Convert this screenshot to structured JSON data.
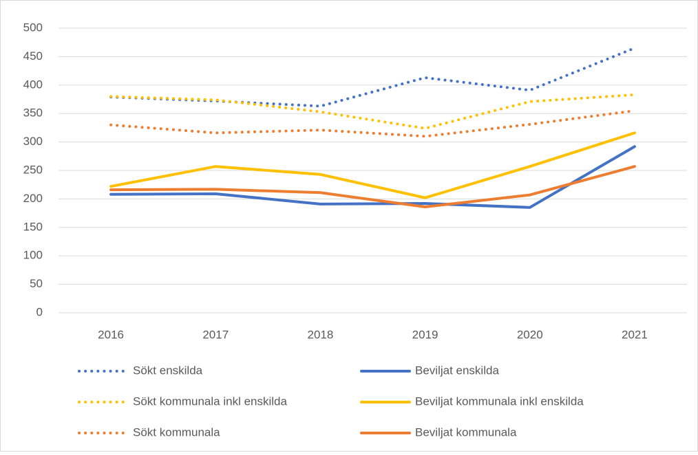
{
  "chart_data": {
    "type": "line",
    "categories": [
      "2016",
      "2017",
      "2018",
      "2019",
      "2020",
      "2021"
    ],
    "series": [
      {
        "name": "Sökt enskilda",
        "color": "#4472c4",
        "line_style": "dotted",
        "values": [
          379,
          372,
          363,
          413,
          391,
          465
        ]
      },
      {
        "name": "Beviljat enskilda",
        "color": "#4472c4",
        "line_style": "solid",
        "values": [
          208,
          209,
          191,
          192,
          185,
          292
        ]
      },
      {
        "name": "Sökt kommunala inkl enskilda",
        "color": "#ffc000",
        "line_style": "dotted",
        "values": [
          380,
          374,
          353,
          324,
          371,
          383
        ]
      },
      {
        "name": "Beviljat kommunala inkl enskilda",
        "color": "#ffc000",
        "line_style": "solid",
        "values": [
          222,
          257,
          243,
          202,
          257,
          316
        ]
      },
      {
        "name": "Sökt kommunala",
        "color": "#ed7d31",
        "line_style": "dotted",
        "values": [
          330,
          316,
          321,
          310,
          331,
          355
        ]
      },
      {
        "name": "Beviljat kommunala",
        "color": "#ed7d31",
        "line_style": "solid",
        "values": [
          216,
          217,
          211,
          186,
          207,
          257
        ]
      }
    ],
    "ylim": [
      0,
      500
    ],
    "yticks": [
      0,
      50,
      100,
      150,
      200,
      250,
      300,
      350,
      400,
      450,
      500
    ],
    "grid": true,
    "legend": "bottom"
  }
}
